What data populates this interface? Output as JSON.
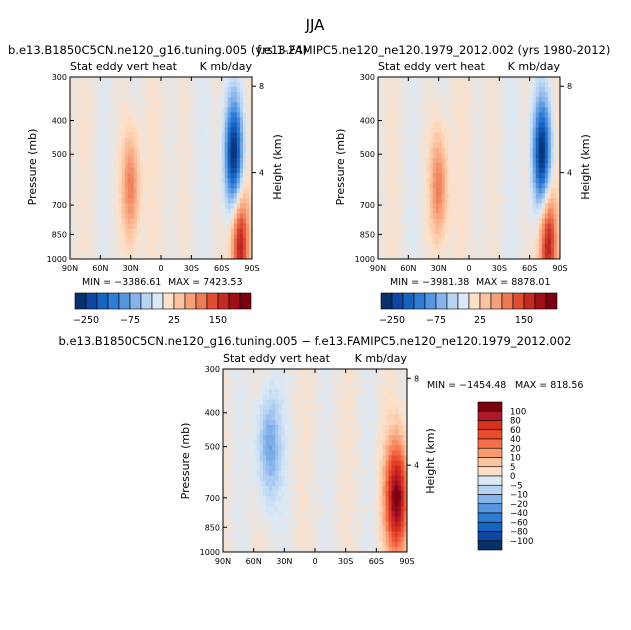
{
  "page_title": "JJA",
  "colors": {
    "pos_strong": "#b2182b",
    "neg_strong": "#08306b",
    "neutral": "#fbe3d0",
    "light_neg": "#dbe9f6"
  },
  "chart_data": [
    {
      "type": "heatmap",
      "title": "b.e13.B1850C5CN.ne120_g16.tuning.005 (yrs 1-24)",
      "subtitle_left": "Stat eddy vert heat",
      "subtitle_right": "K mb/day",
      "ylabel": "Pressure (mb)",
      "ylabel_right": "Height (km)",
      "x_ticks": [
        "90N",
        "60N",
        "30N",
        "0",
        "30S",
        "60S",
        "90S"
      ],
      "y_ticks": [
        "300",
        "400",
        "500",
        "700",
        "850",
        "1000"
      ],
      "y_ticks_right": [
        "8",
        "4"
      ],
      "xlim": [
        90,
        -90
      ],
      "ylim": [
        1000,
        300
      ],
      "min_label": "MIN = −3386.61",
      "max_label": "MAX = 7423.53",
      "colorbar_labels": [
        "−250",
        "−75",
        "25",
        "150"
      ],
      "colorbar": [
        "#08306b",
        "#0d47a1",
        "#1565c0",
        "#2f7bd6",
        "#5596e0",
        "#86b4ea",
        "#b8d3f2",
        "#dbe9f6",
        "#fde0c8",
        "#fbc3a0",
        "#f6a07a",
        "#ee7a55",
        "#de4d34",
        "#c22a22",
        "#9e1016",
        "#7a0010"
      ],
      "features": [
        {
          "lat": 30,
          "p": 620,
          "value": 120
        },
        {
          "lat": -72,
          "p": 500,
          "value": -250
        },
        {
          "lat": -78,
          "p": 900,
          "value": 200
        }
      ]
    },
    {
      "type": "heatmap",
      "title": "f.e13.FAMIPC5.ne120_ne120.1979_2012.002 (yrs 1980-2012)",
      "subtitle_left": "Stat eddy vert heat",
      "subtitle_right": "K mb/day",
      "ylabel": "Pressure (mb)",
      "ylabel_right": "Height (km)",
      "x_ticks": [
        "90N",
        "60N",
        "30N",
        "0",
        "30S",
        "60S",
        "90S"
      ],
      "y_ticks": [
        "300",
        "400",
        "500",
        "700",
        "850",
        "1000"
      ],
      "y_ticks_right": [
        "8",
        "4"
      ],
      "xlim": [
        90,
        -90
      ],
      "ylim": [
        1000,
        300
      ],
      "min_label": "MIN = −3981.38",
      "max_label": "MAX = 8878.01",
      "colorbar_labels": [
        "−250",
        "−75",
        "25",
        "150"
      ],
      "colorbar": [
        "#08306b",
        "#0d47a1",
        "#1565c0",
        "#2f7bd6",
        "#5596e0",
        "#86b4ea",
        "#b8d3f2",
        "#dbe9f6",
        "#fde0c8",
        "#fbc3a0",
        "#f6a07a",
        "#ee7a55",
        "#de4d34",
        "#c22a22",
        "#9e1016",
        "#7a0010"
      ],
      "features": [
        {
          "lat": 30,
          "p": 620,
          "value": 120
        },
        {
          "lat": -72,
          "p": 500,
          "value": -250
        },
        {
          "lat": -78,
          "p": 900,
          "value": 200
        }
      ]
    },
    {
      "type": "heatmap",
      "title": "b.e13.B1850C5CN.ne120_g16.tuning.005 − f.e13.FAMIPC5.ne120_ne120.1979_2012.002",
      "subtitle_left": "Stat eddy vert heat",
      "subtitle_right": "K mb/day",
      "ylabel": "Pressure (mb)",
      "ylabel_right": "Height (km)",
      "x_ticks": [
        "90N",
        "60N",
        "30N",
        "0",
        "30S",
        "60S",
        "90S"
      ],
      "y_ticks": [
        "300",
        "400",
        "500",
        "700",
        "850",
        "1000"
      ],
      "y_ticks_right": [
        "8",
        "4"
      ],
      "xlim": [
        90,
        -90
      ],
      "ylim": [
        1000,
        300
      ],
      "min_label": "MIN = −1454.48",
      "max_label": "MAX = 818.56",
      "colorbar_labels": [
        "100",
        "80",
        "60",
        "40",
        "20",
        "10",
        "5",
        "0",
        "−5",
        "−10",
        "−20",
        "−40",
        "−60",
        "−80",
        "−100"
      ],
      "colorbar": [
        "#7a0010",
        "#b2182b",
        "#d6301f",
        "#ea4b2e",
        "#f4704a",
        "#f99a70",
        "#fbc3a0",
        "#fde0c8",
        "#dbe9f6",
        "#b8d3f2",
        "#86b4ea",
        "#5596e0",
        "#2f7bd6",
        "#1565c0",
        "#0d47a1",
        "#08306b"
      ],
      "features": [
        {
          "lat": 45,
          "p": 500,
          "value": -40
        },
        {
          "lat": -80,
          "p": 700,
          "value": 100
        }
      ]
    }
  ]
}
